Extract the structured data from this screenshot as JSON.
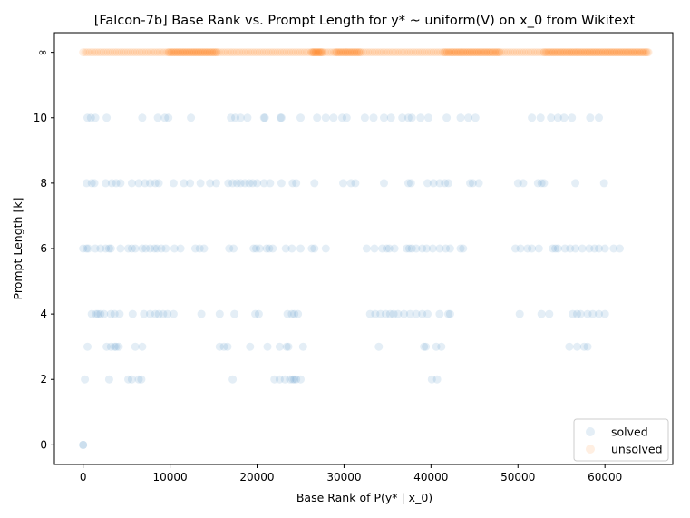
{
  "chart_data": {
    "type": "scatter",
    "title": "[Falcon-7b] Base Rank vs. Prompt Length for y* ~ uniform(V) on x_0 from Wikitext",
    "xlabel": "Base Rank of P(y* | x_0)",
    "ylabel": "Prompt Length [k]",
    "xlim": [
      -3300,
      67800
    ],
    "x_ticks": [
      0,
      10000,
      20000,
      30000,
      40000,
      50000,
      60000
    ],
    "x_tick_labels": [
      "0",
      "10000",
      "20000",
      "30000",
      "40000",
      "50000",
      "60000"
    ],
    "y_ticks": [
      0,
      2,
      4,
      6,
      8,
      10,
      12
    ],
    "y_tick_labels": [
      "0",
      "2",
      "4",
      "6",
      "8",
      "10",
      "∞"
    ],
    "ylim": [
      -0.6,
      12.6
    ],
    "grid": false,
    "legend_position": "bottom-right",
    "series": [
      {
        "name": "solved",
        "color": "#1f77b4",
        "alpha": 0.12,
        "points": [
          [
            0,
            0
          ],
          [
            0,
            0
          ],
          [
            200,
            2
          ],
          [
            3000,
            2
          ],
          [
            5200,
            2
          ],
          [
            5600,
            2
          ],
          [
            6400,
            2
          ],
          [
            6700,
            2
          ],
          [
            17200,
            2
          ],
          [
            22000,
            2
          ],
          [
            22600,
            2
          ],
          [
            23200,
            2
          ],
          [
            23800,
            2
          ],
          [
            24100,
            2
          ],
          [
            24300,
            2
          ],
          [
            24500,
            2
          ],
          [
            25000,
            2
          ],
          [
            40100,
            2
          ],
          [
            40700,
            2
          ],
          [
            500,
            3
          ],
          [
            2700,
            3
          ],
          [
            3200,
            3
          ],
          [
            3600,
            3
          ],
          [
            3800,
            3
          ],
          [
            4100,
            3
          ],
          [
            6000,
            3
          ],
          [
            6800,
            3
          ],
          [
            15700,
            3
          ],
          [
            16200,
            3
          ],
          [
            16600,
            3
          ],
          [
            19200,
            3
          ],
          [
            21200,
            3
          ],
          [
            22600,
            3
          ],
          [
            23400,
            3
          ],
          [
            23600,
            3
          ],
          [
            25300,
            3
          ],
          [
            34000,
            3
          ],
          [
            39200,
            3
          ],
          [
            39400,
            3
          ],
          [
            40600,
            3
          ],
          [
            41200,
            3
          ],
          [
            55900,
            3
          ],
          [
            56800,
            3
          ],
          [
            57600,
            3
          ],
          [
            58000,
            3
          ],
          [
            1000,
            4
          ],
          [
            1500,
            4
          ],
          [
            1700,
            4
          ],
          [
            2000,
            4
          ],
          [
            2400,
            4
          ],
          [
            3200,
            4
          ],
          [
            3600,
            4
          ],
          [
            4200,
            4
          ],
          [
            5700,
            4
          ],
          [
            7000,
            4
          ],
          [
            7700,
            4
          ],
          [
            8300,
            4
          ],
          [
            8700,
            4
          ],
          [
            9200,
            4
          ],
          [
            9700,
            4
          ],
          [
            10400,
            4
          ],
          [
            13600,
            4
          ],
          [
            15700,
            4
          ],
          [
            17400,
            4
          ],
          [
            19800,
            4
          ],
          [
            20200,
            4
          ],
          [
            23500,
            4
          ],
          [
            24000,
            4
          ],
          [
            24300,
            4
          ],
          [
            24700,
            4
          ],
          [
            33000,
            4
          ],
          [
            33600,
            4
          ],
          [
            34200,
            4
          ],
          [
            34800,
            4
          ],
          [
            35300,
            4
          ],
          [
            35700,
            4
          ],
          [
            36200,
            4
          ],
          [
            36900,
            4
          ],
          [
            37600,
            4
          ],
          [
            38300,
            4
          ],
          [
            39000,
            4
          ],
          [
            39600,
            4
          ],
          [
            41000,
            4
          ],
          [
            42000,
            4
          ],
          [
            42200,
            4
          ],
          [
            50200,
            4
          ],
          [
            52700,
            4
          ],
          [
            53600,
            4
          ],
          [
            56300,
            4
          ],
          [
            56800,
            4
          ],
          [
            57200,
            4
          ],
          [
            58000,
            4
          ],
          [
            58600,
            4
          ],
          [
            59300,
            4
          ],
          [
            60000,
            4
          ],
          [
            0,
            6
          ],
          [
            400,
            6
          ],
          [
            600,
            6
          ],
          [
            1400,
            6
          ],
          [
            2000,
            6
          ],
          [
            2600,
            6
          ],
          [
            3000,
            6
          ],
          [
            3200,
            6
          ],
          [
            4300,
            6
          ],
          [
            5200,
            6
          ],
          [
            5600,
            6
          ],
          [
            6000,
            6
          ],
          [
            6800,
            6
          ],
          [
            7200,
            6
          ],
          [
            7700,
            6
          ],
          [
            8200,
            6
          ],
          [
            8500,
            6
          ],
          [
            9000,
            6
          ],
          [
            9500,
            6
          ],
          [
            10500,
            6
          ],
          [
            11200,
            6
          ],
          [
            12900,
            6
          ],
          [
            13400,
            6
          ],
          [
            13900,
            6
          ],
          [
            16800,
            6
          ],
          [
            17300,
            6
          ],
          [
            19600,
            6
          ],
          [
            19900,
            6
          ],
          [
            20300,
            6
          ],
          [
            21100,
            6
          ],
          [
            21400,
            6
          ],
          [
            21800,
            6
          ],
          [
            23300,
            6
          ],
          [
            24000,
            6
          ],
          [
            25000,
            6
          ],
          [
            26300,
            6
          ],
          [
            26600,
            6
          ],
          [
            27900,
            6
          ],
          [
            32600,
            6
          ],
          [
            33500,
            6
          ],
          [
            34400,
            6
          ],
          [
            34900,
            6
          ],
          [
            35200,
            6
          ],
          [
            35800,
            6
          ],
          [
            37200,
            6
          ],
          [
            37500,
            6
          ],
          [
            37800,
            6
          ],
          [
            38300,
            6
          ],
          [
            39000,
            6
          ],
          [
            39500,
            6
          ],
          [
            40200,
            6
          ],
          [
            41000,
            6
          ],
          [
            41700,
            6
          ],
          [
            42200,
            6
          ],
          [
            43400,
            6
          ],
          [
            43700,
            6
          ],
          [
            49700,
            6
          ],
          [
            50300,
            6
          ],
          [
            51100,
            6
          ],
          [
            51600,
            6
          ],
          [
            52400,
            6
          ],
          [
            54000,
            6
          ],
          [
            54300,
            6
          ],
          [
            54600,
            6
          ],
          [
            55400,
            6
          ],
          [
            56000,
            6
          ],
          [
            56600,
            6
          ],
          [
            57400,
            6
          ],
          [
            58200,
            6
          ],
          [
            58800,
            6
          ],
          [
            59300,
            6
          ],
          [
            60000,
            6
          ],
          [
            61000,
            6
          ],
          [
            61700,
            6
          ],
          [
            400,
            8
          ],
          [
            1000,
            8
          ],
          [
            1300,
            8
          ],
          [
            2600,
            8
          ],
          [
            3300,
            8
          ],
          [
            3800,
            8
          ],
          [
            4300,
            8
          ],
          [
            5600,
            8
          ],
          [
            6400,
            8
          ],
          [
            7100,
            8
          ],
          [
            7700,
            8
          ],
          [
            8300,
            8
          ],
          [
            8700,
            8
          ],
          [
            10400,
            8
          ],
          [
            11600,
            8
          ],
          [
            12300,
            8
          ],
          [
            13500,
            8
          ],
          [
            14600,
            8
          ],
          [
            15300,
            8
          ],
          [
            16700,
            8
          ],
          [
            17200,
            8
          ],
          [
            17700,
            8
          ],
          [
            18100,
            8
          ],
          [
            18600,
            8
          ],
          [
            19100,
            8
          ],
          [
            19500,
            8
          ],
          [
            20000,
            8
          ],
          [
            20800,
            8
          ],
          [
            21500,
            8
          ],
          [
            22800,
            8
          ],
          [
            24100,
            8
          ],
          [
            24500,
            8
          ],
          [
            26600,
            8
          ],
          [
            29900,
            8
          ],
          [
            30800,
            8
          ],
          [
            31300,
            8
          ],
          [
            34600,
            8
          ],
          [
            37400,
            8
          ],
          [
            37700,
            8
          ],
          [
            39600,
            8
          ],
          [
            40300,
            8
          ],
          [
            41000,
            8
          ],
          [
            41600,
            8
          ],
          [
            42000,
            8
          ],
          [
            44500,
            8
          ],
          [
            44800,
            8
          ],
          [
            45500,
            8
          ],
          [
            50000,
            8
          ],
          [
            50600,
            8
          ],
          [
            52300,
            8
          ],
          [
            52700,
            8
          ],
          [
            53000,
            8
          ],
          [
            56600,
            8
          ],
          [
            59900,
            8
          ],
          [
            500,
            10
          ],
          [
            900,
            10
          ],
          [
            1400,
            10
          ],
          [
            2700,
            10
          ],
          [
            6800,
            10
          ],
          [
            8600,
            10
          ],
          [
            9400,
            10
          ],
          [
            9800,
            10
          ],
          [
            12400,
            10
          ],
          [
            17000,
            10
          ],
          [
            17500,
            10
          ],
          [
            18100,
            10
          ],
          [
            18900,
            10
          ],
          [
            20800,
            10
          ],
          [
            20900,
            10
          ],
          [
            22700,
            10
          ],
          [
            22800,
            10
          ],
          [
            25000,
            10
          ],
          [
            26900,
            10
          ],
          [
            27900,
            10
          ],
          [
            28800,
            10
          ],
          [
            29800,
            10
          ],
          [
            30300,
            10
          ],
          [
            32400,
            10
          ],
          [
            33400,
            10
          ],
          [
            34600,
            10
          ],
          [
            35400,
            10
          ],
          [
            36700,
            10
          ],
          [
            37400,
            10
          ],
          [
            37800,
            10
          ],
          [
            38800,
            10
          ],
          [
            39700,
            10
          ],
          [
            41800,
            10
          ],
          [
            43400,
            10
          ],
          [
            44300,
            10
          ],
          [
            45100,
            10
          ],
          [
            51600,
            10
          ],
          [
            52600,
            10
          ],
          [
            53800,
            10
          ],
          [
            54600,
            10
          ],
          [
            55300,
            10
          ],
          [
            56200,
            10
          ],
          [
            58300,
            10
          ],
          [
            59300,
            10
          ]
        ]
      },
      {
        "name": "unsolved",
        "color": "#ff7f0e",
        "alpha": 0.12,
        "range_groups": [
          {
            "from": 0,
            "to": 65000,
            "step": 260
          },
          {
            "from": 9800,
            "to": 15400,
            "step": 180
          },
          {
            "from": 26300,
            "to": 27600,
            "step": 110
          },
          {
            "from": 29000,
            "to": 32000,
            "step": 180
          },
          {
            "from": 41500,
            "to": 47900,
            "step": 200
          },
          {
            "from": 53000,
            "to": 65000,
            "step": 220
          }
        ],
        "y": 12
      }
    ]
  }
}
